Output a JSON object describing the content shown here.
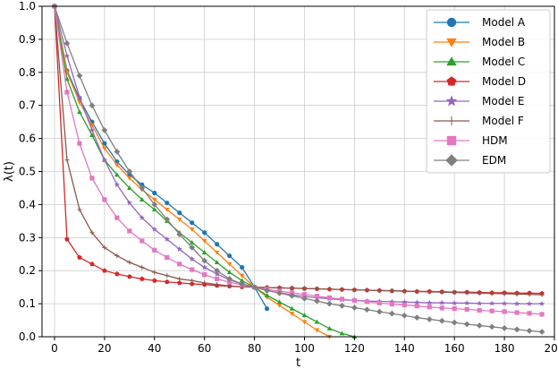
{
  "chart_data": {
    "type": "line",
    "title": "",
    "xlabel": "t",
    "ylabel": "λ(t)",
    "xlim": [
      -5,
      200
    ],
    "ylim": [
      0.0,
      1.0
    ],
    "xticks": [
      "0",
      "20",
      "40",
      "60",
      "80",
      "100",
      "120",
      "140",
      "160",
      "180",
      "200"
    ],
    "yticks": [
      "0.0",
      "0.1",
      "0.2",
      "0.3",
      "0.4",
      "0.5",
      "0.6",
      "0.7",
      "0.8",
      "0.9",
      "1.0"
    ],
    "grid": true,
    "legend_position": "top-right",
    "series": [
      {
        "name": "Model A",
        "color": "#1f77b4",
        "marker": "circle",
        "x": [
          0,
          5,
          10,
          15,
          20,
          25,
          30,
          35,
          40,
          45,
          50,
          55,
          60,
          65,
          70,
          75,
          80,
          85
        ],
        "y": [
          1.0,
          0.805,
          0.72,
          0.65,
          0.585,
          0.53,
          0.49,
          0.46,
          0.435,
          0.405,
          0.375,
          0.345,
          0.315,
          0.28,
          0.245,
          0.21,
          0.15,
          0.085
        ]
      },
      {
        "name": "Model B",
        "color": "#ff7f0e",
        "marker": "triangle-down",
        "x": [
          0,
          5,
          10,
          15,
          20,
          25,
          30,
          35,
          40,
          45,
          50,
          55,
          60,
          65,
          70,
          75,
          80,
          85,
          90,
          95,
          100,
          105,
          110
        ],
        "y": [
          1.0,
          0.8,
          0.71,
          0.64,
          0.57,
          0.52,
          0.48,
          0.445,
          0.415,
          0.385,
          0.355,
          0.325,
          0.29,
          0.255,
          0.22,
          0.185,
          0.15,
          0.12,
          0.095,
          0.07,
          0.045,
          0.02,
          0.0
        ]
      },
      {
        "name": "Model C",
        "color": "#2ca02c",
        "marker": "triangle-up",
        "x": [
          0,
          5,
          10,
          15,
          20,
          25,
          30,
          35,
          40,
          45,
          50,
          55,
          60,
          65,
          70,
          75,
          80,
          85,
          90,
          95,
          100,
          105,
          110,
          115,
          120
        ],
        "y": [
          1.0,
          0.78,
          0.68,
          0.61,
          0.535,
          0.49,
          0.45,
          0.415,
          0.385,
          0.35,
          0.315,
          0.285,
          0.255,
          0.225,
          0.195,
          0.17,
          0.15,
          0.125,
          0.105,
          0.085,
          0.065,
          0.045,
          0.025,
          0.01,
          0.0
        ]
      },
      {
        "name": "Model D",
        "color": "#d62728",
        "marker": "pentagon",
        "x": [
          0,
          5,
          10,
          15,
          20,
          25,
          30,
          35,
          40,
          45,
          50,
          55,
          60,
          65,
          70,
          75,
          80,
          85,
          90,
          95,
          100,
          105,
          110,
          115,
          120,
          125,
          130,
          135,
          140,
          145,
          150,
          155,
          160,
          165,
          170,
          175,
          180,
          185,
          190,
          195
        ],
        "y": [
          1.0,
          0.295,
          0.24,
          0.22,
          0.2,
          0.19,
          0.182,
          0.175,
          0.17,
          0.166,
          0.163,
          0.16,
          0.158,
          0.155,
          0.153,
          0.151,
          0.15,
          0.149,
          0.148,
          0.147,
          0.146,
          0.145,
          0.144,
          0.143,
          0.142,
          0.141,
          0.14,
          0.139,
          0.138,
          0.137,
          0.137,
          0.136,
          0.135,
          0.135,
          0.134,
          0.133,
          0.133,
          0.132,
          0.132,
          0.131
        ]
      },
      {
        "name": "Model E",
        "color": "#9467bd",
        "marker": "star",
        "x": [
          0,
          5,
          10,
          15,
          20,
          25,
          30,
          35,
          40,
          45,
          50,
          55,
          60,
          65,
          70,
          75,
          80,
          85,
          90,
          95,
          100,
          105,
          110,
          115,
          120,
          125,
          130,
          135,
          140,
          145,
          150,
          155,
          160,
          165,
          170,
          175,
          180,
          185,
          190,
          195
        ],
        "y": [
          1.0,
          0.85,
          0.725,
          0.625,
          0.535,
          0.46,
          0.405,
          0.36,
          0.325,
          0.295,
          0.265,
          0.235,
          0.21,
          0.19,
          0.172,
          0.16,
          0.15,
          0.14,
          0.133,
          0.127,
          0.122,
          0.118,
          0.115,
          0.112,
          0.11,
          0.108,
          0.107,
          0.106,
          0.105,
          0.104,
          0.103,
          0.103,
          0.102,
          0.102,
          0.101,
          0.101,
          0.101,
          0.1,
          0.1,
          0.1
        ]
      },
      {
        "name": "Model F",
        "color": "#8c564b",
        "marker": "plus",
        "x": [
          0,
          5,
          10,
          15,
          20,
          25,
          30,
          35,
          40,
          45,
          50,
          55,
          60,
          65,
          70,
          75,
          80,
          85,
          90,
          95,
          100,
          105,
          110,
          115,
          120,
          125,
          130,
          135,
          140,
          145,
          150,
          155,
          160,
          165,
          170,
          175,
          180,
          185,
          190,
          195
        ],
        "y": [
          1.0,
          0.535,
          0.385,
          0.315,
          0.27,
          0.245,
          0.225,
          0.21,
          0.195,
          0.185,
          0.175,
          0.17,
          0.163,
          0.158,
          0.154,
          0.151,
          0.15,
          0.149,
          0.148,
          0.147,
          0.146,
          0.145,
          0.144,
          0.143,
          0.142,
          0.141,
          0.14,
          0.139,
          0.138,
          0.137,
          0.136,
          0.135,
          0.134,
          0.133,
          0.132,
          0.131,
          0.13,
          0.129,
          0.128,
          0.127
        ]
      },
      {
        "name": "HDM",
        "color": "#e377c2",
        "marker": "square",
        "x": [
          0,
          5,
          10,
          15,
          20,
          25,
          30,
          35,
          40,
          45,
          50,
          55,
          60,
          65,
          70,
          75,
          80,
          85,
          90,
          95,
          100,
          105,
          110,
          115,
          120,
          125,
          130,
          135,
          140,
          145,
          150,
          155,
          160,
          165,
          170,
          175,
          180,
          185,
          190,
          195
        ],
        "y": [
          1.0,
          0.74,
          0.585,
          0.48,
          0.415,
          0.36,
          0.32,
          0.29,
          0.262,
          0.24,
          0.22,
          0.203,
          0.188,
          0.175,
          0.165,
          0.157,
          0.15,
          0.144,
          0.138,
          0.133,
          0.128,
          0.123,
          0.118,
          0.114,
          0.11,
          0.106,
          0.102,
          0.099,
          0.096,
          0.093,
          0.09,
          0.087,
          0.085,
          0.083,
          0.08,
          0.078,
          0.076,
          0.073,
          0.071,
          0.068
        ]
      },
      {
        "name": "EDM",
        "color": "#7f7f7f",
        "marker": "diamond",
        "x": [
          0,
          5,
          10,
          15,
          20,
          25,
          30,
          35,
          40,
          45,
          50,
          55,
          60,
          65,
          70,
          75,
          80,
          85,
          90,
          95,
          100,
          105,
          110,
          115,
          120,
          125,
          130,
          135,
          140,
          145,
          150,
          155,
          160,
          165,
          170,
          175,
          180,
          185,
          190,
          195
        ],
        "y": [
          1.0,
          0.888,
          0.79,
          0.7,
          0.625,
          0.56,
          0.5,
          0.45,
          0.4,
          0.355,
          0.31,
          0.27,
          0.23,
          0.2,
          0.175,
          0.16,
          0.15,
          0.14,
          0.132,
          0.124,
          0.116,
          0.108,
          0.1,
          0.094,
          0.088,
          0.082,
          0.076,
          0.07,
          0.064,
          0.058,
          0.053,
          0.048,
          0.043,
          0.038,
          0.034,
          0.03,
          0.026,
          0.022,
          0.018,
          0.015
        ]
      }
    ]
  }
}
